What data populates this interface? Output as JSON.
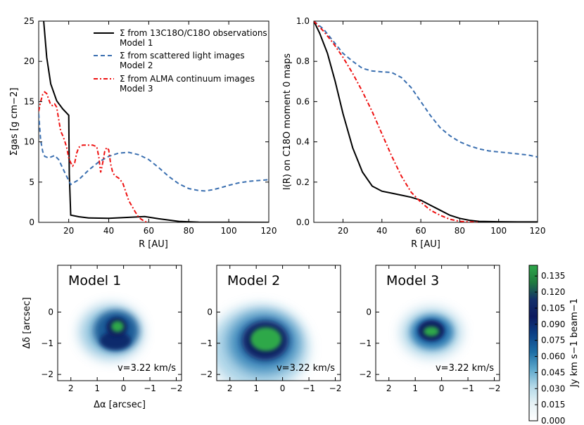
{
  "chart_data": [
    {
      "type": "line",
      "xlabel": "R [AU]",
      "ylabel": "Σgas [g cm−2]",
      "xlim": [
        5,
        120
      ],
      "ylim": [
        0,
        25
      ],
      "xticks": [
        "20",
        "40",
        "60",
        "80",
        "100",
        "120"
      ],
      "xtick_values": [
        20,
        40,
        60,
        80,
        100,
        120
      ],
      "yticks": [
        "0",
        "5",
        "10",
        "15",
        "20",
        "25"
      ],
      "ytick_values": [
        0,
        5,
        10,
        15,
        20,
        25
      ],
      "legend": [
        "Σ from 13C18O/C18O observations",
        "Model 1",
        "Σ from scattered light images",
        "Model 2",
        "Σ from ALMA continuum images",
        "Model 3"
      ],
      "series": [
        {
          "name": "Model 1",
          "color": "#000000",
          "style": "solid",
          "x": [
            7.5,
            9,
            11,
            14,
            17,
            20,
            20.3,
            21,
            25,
            30,
            40,
            50,
            58,
            65,
            75,
            85,
            100,
            120
          ],
          "y": [
            25,
            20.5,
            17.2,
            15.1,
            14.1,
            13.3,
            6,
            0.9,
            0.7,
            0.55,
            0.5,
            0.62,
            0.72,
            0.45,
            0.12,
            0.03,
            0.01,
            0
          ]
        },
        {
          "name": "Model 2",
          "color": "#3a6fb0",
          "style": "dashed",
          "x": [
            5,
            6,
            7,
            8,
            10,
            13,
            15,
            18,
            21,
            25,
            30,
            35,
            40,
            45,
            50,
            55,
            60,
            65,
            70,
            75,
            80,
            85,
            88,
            92,
            96,
            100,
            105,
            110,
            115,
            120
          ],
          "y": [
            13.5,
            10.2,
            8.8,
            8.2,
            8.0,
            8.3,
            7.8,
            6.2,
            4.7,
            5.3,
            6.5,
            7.5,
            8.2,
            8.6,
            8.7,
            8.4,
            7.8,
            6.8,
            5.7,
            4.8,
            4.2,
            3.95,
            3.9,
            4.05,
            4.3,
            4.6,
            4.9,
            5.1,
            5.2,
            5.3
          ]
        },
        {
          "name": "Model 3",
          "color": "#ee1111",
          "style": "dashdot",
          "x": [
            5,
            6,
            7,
            8,
            9,
            10,
            11,
            12,
            13,
            14,
            15,
            16,
            17,
            18,
            19,
            20,
            21,
            22,
            23,
            24,
            25,
            26,
            27,
            28,
            30,
            32,
            34,
            35,
            36,
            37,
            38,
            39,
            40,
            41,
            42,
            43,
            45,
            47,
            50,
            53,
            55,
            58,
            60
          ],
          "y": [
            13.8,
            15.0,
            15.9,
            16.2,
            16.0,
            15.3,
            14.6,
            14.5,
            14.7,
            14.3,
            12.8,
            11.3,
            10.8,
            10.1,
            9.3,
            8.0,
            7.4,
            7.0,
            7.4,
            8.6,
            9.3,
            9.5,
            9.6,
            9.6,
            9.6,
            9.6,
            9.4,
            8.2,
            6.2,
            7.4,
            8.8,
            9.3,
            9.0,
            7.2,
            6.2,
            5.8,
            5.5,
            4.9,
            2.7,
            1.4,
            0.6,
            0.1,
            0
          ]
        }
      ]
    },
    {
      "type": "line",
      "xlabel": "R [AU]",
      "ylabel": "I(R) on C18O moment 0 maps",
      "xlim": [
        5,
        120
      ],
      "ylim": [
        0,
        1.0
      ],
      "xticks": [
        "20",
        "40",
        "60",
        "80",
        "100",
        "120"
      ],
      "xtick_values": [
        20,
        40,
        60,
        80,
        100,
        120
      ],
      "yticks": [
        "0.0",
        "0.2",
        "0.4",
        "0.6",
        "0.8",
        "1.0"
      ],
      "ytick_values": [
        0,
        0.2,
        0.4,
        0.6,
        0.8,
        1.0
      ],
      "series": [
        {
          "name": "Model 1",
          "color": "#000000",
          "style": "solid",
          "x": [
            5,
            8,
            12,
            16,
            20,
            25,
            30,
            35,
            40,
            45,
            50,
            55,
            60,
            65,
            70,
            75,
            80,
            85,
            90,
            100,
            110,
            120
          ],
          "y": [
            1.0,
            0.94,
            0.84,
            0.7,
            0.54,
            0.37,
            0.25,
            0.18,
            0.155,
            0.145,
            0.135,
            0.125,
            0.11,
            0.085,
            0.06,
            0.035,
            0.02,
            0.01,
            0.005,
            0.003,
            0.002,
            0.002
          ]
        },
        {
          "name": "Model 2",
          "color": "#3a6fb0",
          "style": "dashed",
          "x": [
            5,
            10,
            15,
            20,
            25,
            30,
            35,
            40,
            45,
            50,
            55,
            60,
            65,
            70,
            75,
            80,
            85,
            90,
            95,
            100,
            105,
            110,
            115,
            120
          ],
          "y": [
            1.0,
            0.96,
            0.9,
            0.84,
            0.8,
            0.765,
            0.752,
            0.748,
            0.745,
            0.72,
            0.67,
            0.6,
            0.53,
            0.47,
            0.43,
            0.4,
            0.38,
            0.365,
            0.355,
            0.35,
            0.345,
            0.34,
            0.335,
            0.325
          ]
        },
        {
          "name": "Model 3",
          "color": "#ee1111",
          "style": "dashdot",
          "x": [
            5,
            10,
            15,
            20,
            25,
            30,
            35,
            40,
            45,
            50,
            55,
            60,
            65,
            70,
            75,
            80,
            85,
            90
          ],
          "y": [
            1.0,
            0.95,
            0.89,
            0.82,
            0.74,
            0.65,
            0.55,
            0.44,
            0.33,
            0.23,
            0.15,
            0.1,
            0.06,
            0.035,
            0.015,
            0.005,
            0.002,
            0
          ]
        }
      ]
    },
    {
      "type": "heatmap",
      "panels": [
        {
          "title": "Model 1",
          "velocity_label": "v=3.22 km/s"
        },
        {
          "title": "Model 2",
          "velocity_label": "v=3.22 km/s"
        },
        {
          "title": "Model 3",
          "velocity_label": "v=3.22 km/s"
        }
      ],
      "xlabel": "Δα [arcsec]",
      "ylabel": "Δδ [arcsec]",
      "xlim": [
        2.5,
        -2.2
      ],
      "ylim": [
        -2.2,
        1.5
      ],
      "xticks": [
        "2",
        "1",
        "0",
        "−1",
        "−2"
      ],
      "xtick_values": [
        2,
        1,
        0,
        -1,
        -2
      ],
      "yticks": [
        "0",
        "−1",
        "−2"
      ],
      "ytick_values": [
        0,
        -1,
        -2
      ],
      "colorbar": {
        "label": "Jy km s−1 beam−1",
        "range": [
          0.0,
          0.145
        ],
        "ticks": [
          "0.135",
          "0.120",
          "0.105",
          "0.090",
          "0.075",
          "0.060",
          "0.045",
          "0.030",
          "0.015",
          "0.000"
        ],
        "tick_values": [
          0.135,
          0.12,
          0.105,
          0.09,
          0.075,
          0.06,
          0.045,
          0.03,
          0.015,
          0.0
        ],
        "colors": [
          "#ffffff",
          "#e6f2f6",
          "#b3d9e8",
          "#5ea8cc",
          "#1d6fa6",
          "#0b3f86",
          "#0c1a60",
          "#14306a",
          "#1f7a3e",
          "#2ea84a"
        ]
      }
    }
  ]
}
